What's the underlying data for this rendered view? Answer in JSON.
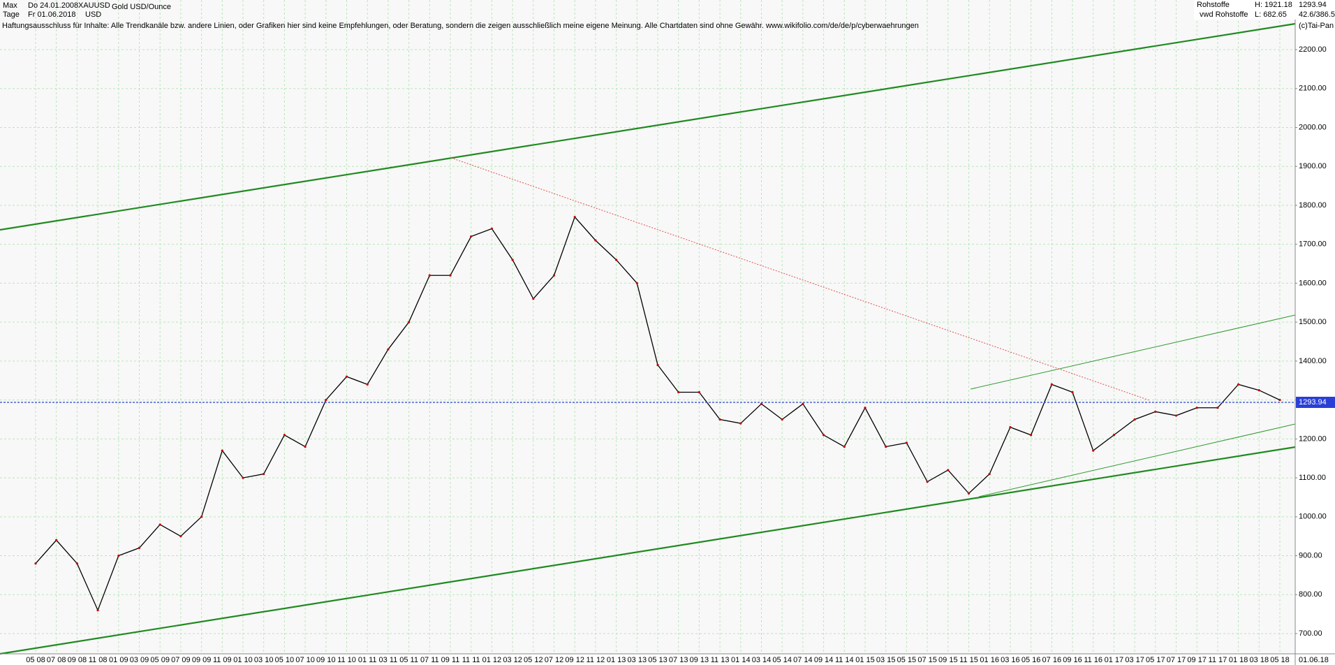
{
  "header": {
    "range": "Max",
    "start_date": "Do 24.01.2008",
    "symbol": "XAUUSD",
    "name": "Gold USD/Ounce",
    "period": "Tage",
    "end_date": "Fr 01.06.2018",
    "currency": "USD",
    "group": "Rohstoffe",
    "high": "H: 1921.18",
    "source": "vwd Rohstoffe",
    "low": "L: 682.65",
    "ratio": "42.6/386.5",
    "copyright": "(c)Tai-Pan",
    "disclaimer": "Haftungsausschluss für Inhalte: Alle Trendkanäle bzw. andere Linien, oder Grafiken hier sind keine Empfehlungen, oder Beratung, sondern die zeigen ausschließlich meine eigene Meinung. Alle Chartdaten sind ohne Gewähr.  www.wikifolio.com/de/de/p/cyberwaehrungen"
  },
  "chart_data": {
    "type": "line",
    "current": 1293.94,
    "current_color": "#2a3fd6",
    "end_label": "01.06.18",
    "categories": [
      "05 08",
      "07 08",
      "09 08",
      "11 08",
      "01 09",
      "03 09",
      "05 09",
      "07 09",
      "09 09",
      "11 09",
      "01 10",
      "03 10",
      "05 10",
      "07 10",
      "09 10",
      "11 10",
      "01 11",
      "03 11",
      "05 11",
      "07 11",
      "09 11",
      "11 11",
      "01 12",
      "03 12",
      "05 12",
      "07 12",
      "09 12",
      "11 12",
      "01 13",
      "03 13",
      "05 13",
      "07 13",
      "09 13",
      "11 13",
      "01 14",
      "03 14",
      "05 14",
      "07 14",
      "09 14",
      "11 14",
      "01 15",
      "03 15",
      "05 15",
      "07 15",
      "09 15",
      "11 15",
      "01 16",
      "03 16",
      "05 16",
      "07 16",
      "09 16",
      "11 16",
      "01 17",
      "03 17",
      "05 17",
      "07 17",
      "09 17",
      "11 17",
      "01 18",
      "03 18",
      "05 18"
    ],
    "series": [
      {
        "color": "#000000",
        "values": [
          880,
          940,
          880,
          760,
          900,
          920,
          980,
          950,
          1000,
          1170,
          1100,
          1110,
          1210,
          1180,
          1300,
          1360,
          1340,
          1430,
          1500,
          1620,
          1620,
          1720,
          1740,
          1660,
          1560,
          1620,
          1770,
          1710,
          1660,
          1600,
          1390,
          1320,
          1320,
          1250,
          1240,
          1290,
          1250,
          1290,
          1210,
          1180,
          1280,
          1180,
          1190,
          1090,
          1120,
          1060,
          1110,
          1230,
          1210,
          1340,
          1320,
          1170,
          1210,
          1250,
          1270,
          1260,
          1280,
          1280,
          1340,
          1325,
          1300
        ]
      }
    ],
    "ylim": [
      648,
      2279
    ],
    "yticks": [
      {
        "value": 700,
        "label": "700.00"
      },
      {
        "value": 800,
        "label": "800.00"
      },
      {
        "value": 900,
        "label": "900.00"
      },
      {
        "value": 1000,
        "label": "1000.00"
      },
      {
        "value": 1100,
        "label": "1100.00"
      },
      {
        "value": 1200,
        "label": "1200.00"
      },
      {
        "value": 1300,
        "label": "1300.00"
      },
      {
        "value": 1400,
        "label": "1400.00"
      },
      {
        "value": 1500,
        "label": "1500.00"
      },
      {
        "value": 1600,
        "label": "1600.00"
      },
      {
        "value": 1700,
        "label": "1700.00"
      },
      {
        "value": 1800,
        "label": "1800.00"
      },
      {
        "value": 1900,
        "label": "1900.00"
      },
      {
        "value": 2000,
        "label": "2000.00"
      },
      {
        "value": 2100,
        "label": "2100.00"
      },
      {
        "value": 2200,
        "label": "2200.00"
      }
    ],
    "grid": true
  }
}
